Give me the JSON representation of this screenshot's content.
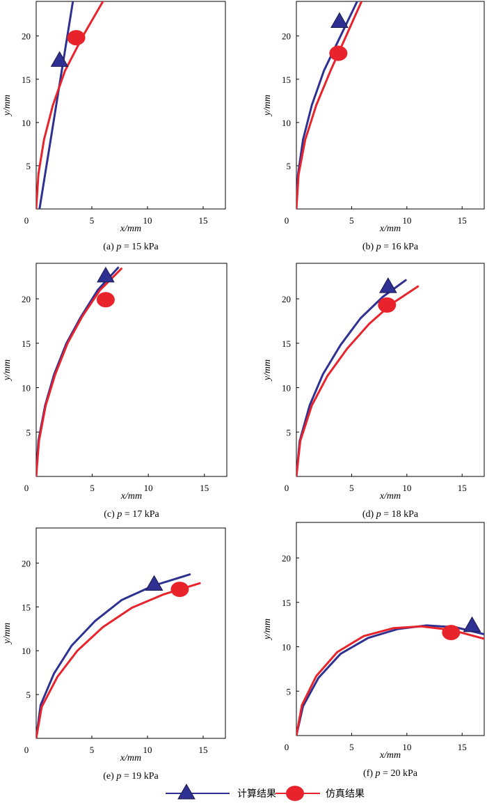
{
  "colors": {
    "calculated": "#2e3192",
    "simulated": "#e8232b"
  },
  "legend": {
    "calculated": "计算结果",
    "simulated": "仿真结果"
  },
  "chart_data": [
    {
      "type": "line",
      "id": "a",
      "caption": "(a) p = 15 kPa",
      "caption_parts": {
        "prefix": "(a) ",
        "var": "p",
        "rest": " = 15 kPa"
      },
      "xlabel": "x/mm",
      "ylabel": "y/mm",
      "xlim": [
        0,
        17
      ],
      "ylim": [
        0,
        24
      ],
      "xticks": [
        0,
        5,
        10,
        15
      ],
      "yticks": [
        5,
        10,
        15,
        20
      ],
      "series": [
        {
          "name": "计算结果",
          "x": [
            0.3,
            0.8,
            1.3,
            1.8,
            2.3,
            2.8,
            3.3
          ],
          "y": [
            0,
            4,
            8,
            12,
            16,
            20,
            24
          ],
          "marker": "triangle",
          "marker_at": [
            2.1,
            17.2
          ]
        },
        {
          "name": "仿真结果",
          "x": [
            0,
            0.2,
            0.7,
            1.5,
            2.6,
            4.2,
            6.0
          ],
          "y": [
            0,
            4,
            8,
            12,
            16,
            20,
            24
          ],
          "marker": "circle",
          "marker_at": [
            3.6,
            19.8
          ]
        }
      ]
    },
    {
      "type": "line",
      "id": "b",
      "caption": "(b) p = 16 kPa",
      "caption_parts": {
        "prefix": "(b) ",
        "var": "p",
        "rest": " = 16 kPa"
      },
      "xlabel": "x/mm",
      "ylabel": "y/mm",
      "xlim": [
        0,
        17
      ],
      "ylim": [
        0,
        24
      ],
      "xticks": [
        0,
        5,
        10,
        15
      ],
      "yticks": [
        5,
        10,
        15,
        20
      ],
      "series": [
        {
          "name": "计算结果",
          "x": [
            0,
            0.15,
            0.6,
            1.4,
            2.5,
            4.0,
            5.5
          ],
          "y": [
            0,
            4,
            8,
            12,
            16,
            20,
            24
          ],
          "marker": "triangle",
          "marker_at": [
            3.9,
            21.7
          ]
        },
        {
          "name": "仿真结果",
          "x": [
            0,
            0.2,
            0.8,
            1.8,
            3.1,
            4.5,
            5.9
          ],
          "y": [
            0,
            4,
            8,
            12,
            16,
            20,
            24
          ],
          "marker": "circle",
          "marker_at": [
            3.8,
            18.0
          ]
        }
      ]
    },
    {
      "type": "line",
      "id": "c",
      "caption": "(c) p = 17 kPa",
      "caption_parts": {
        "prefix": "(c) ",
        "var": "p",
        "rest": " = 17 kPa"
      },
      "xlabel": "x/mm",
      "ylabel": "y/mm",
      "xlim": [
        0,
        17
      ],
      "ylim": [
        0,
        24
      ],
      "xticks": [
        0,
        5,
        10,
        15
      ],
      "yticks": [
        5,
        10,
        15,
        20
      ],
      "series": [
        {
          "name": "计算结果",
          "x": [
            0,
            0.2,
            0.8,
            1.6,
            2.7,
            4.0,
            5.5,
            7.3
          ],
          "y": [
            0,
            4,
            8,
            11.5,
            15,
            18,
            21,
            23.5
          ],
          "marker": "triangle",
          "marker_at": [
            6.2,
            22.6
          ]
        },
        {
          "name": "仿真结果",
          "x": [
            0,
            0.25,
            0.85,
            1.7,
            2.8,
            4.1,
            5.7,
            7.6
          ],
          "y": [
            0,
            4,
            8,
            11.5,
            15,
            18,
            21,
            23.4
          ],
          "marker": "circle",
          "marker_at": [
            6.2,
            19.9
          ]
        }
      ]
    },
    {
      "type": "line",
      "id": "d",
      "caption": "(d) p = 18 kPa",
      "caption_parts": {
        "prefix": "(d) ",
        "var": "p",
        "rest": " = 18 kPa"
      },
      "xlabel": "x/mm",
      "ylabel": "y/mm",
      "xlim": [
        0,
        17
      ],
      "ylim": [
        0,
        24
      ],
      "xticks": [
        0,
        5,
        10,
        15
      ],
      "yticks": [
        5,
        10,
        15,
        20
      ],
      "series": [
        {
          "name": "计算结果",
          "x": [
            0,
            0.3,
            1.2,
            2.4,
            4.0,
            5.8,
            7.8,
            9.9
          ],
          "y": [
            0,
            4,
            8,
            11.5,
            14.8,
            17.8,
            20.2,
            22.1
          ],
          "marker": "triangle",
          "marker_at": [
            8.3,
            21.4
          ]
        },
        {
          "name": "仿真结果",
          "x": [
            0,
            0.35,
            1.4,
            2.8,
            4.6,
            6.6,
            8.7,
            11.0
          ],
          "y": [
            0,
            4,
            8,
            11.3,
            14.4,
            17.2,
            19.5,
            21.4
          ],
          "marker": "circle",
          "marker_at": [
            8.2,
            19.3
          ]
        }
      ]
    },
    {
      "type": "line",
      "id": "e",
      "caption": "(e) p = 19 kPa",
      "caption_parts": {
        "prefix": "(e) ",
        "var": "p",
        "rest": " = 19 kPa"
      },
      "xlabel": "x/mm",
      "ylabel": "y/mm",
      "xlim": [
        0,
        17
      ],
      "ylim": [
        0,
        24
      ],
      "xticks": [
        0,
        5,
        10,
        15
      ],
      "yticks": [
        5,
        10,
        15,
        20
      ],
      "series": [
        {
          "name": "计算结果",
          "x": [
            0,
            0.4,
            1.6,
            3.2,
            5.3,
            7.7,
            10.5,
            13.8
          ],
          "y": [
            0,
            3.8,
            7.4,
            10.6,
            13.4,
            15.8,
            17.4,
            18.7
          ],
          "marker": "triangle",
          "marker_at": [
            10.6,
            17.6
          ]
        },
        {
          "name": "仿真结果",
          "x": [
            0,
            0.5,
            1.9,
            3.7,
            6.0,
            8.6,
            11.4,
            14.7
          ],
          "y": [
            0,
            3.6,
            7.0,
            10.0,
            12.7,
            14.9,
            16.4,
            17.7
          ],
          "marker": "circle",
          "marker_at": [
            12.9,
            17.0
          ]
        }
      ]
    },
    {
      "type": "line",
      "id": "f",
      "caption": "(f) p = 20 kPa",
      "caption_parts": {
        "prefix": "(f) ",
        "var": "p",
        "rest": " = 20 kPa"
      },
      "xlabel": "x/mm",
      "ylabel": "y/mm",
      "xlim": [
        0,
        17
      ],
      "ylim": [
        0,
        24
      ],
      "xticks": [
        0,
        5,
        10,
        15
      ],
      "yticks": [
        5,
        10,
        15,
        20
      ],
      "series": [
        {
          "name": "计算结果",
          "x": [
            0,
            0.6,
            2.0,
            4.0,
            6.5,
            9.2,
            11.8,
            14.4,
            17.0
          ],
          "y": [
            0,
            3.3,
            6.5,
            9.2,
            11.0,
            12.0,
            12.4,
            12.2,
            11.4
          ],
          "marker": "triangle",
          "marker_at": [
            15.9,
            12.4
          ]
        },
        {
          "name": "仿真结果",
          "x": [
            0,
            0.5,
            1.8,
            3.7,
            6.1,
            8.8,
            11.3,
            14.0,
            17.0
          ],
          "y": [
            0,
            3.4,
            6.7,
            9.4,
            11.2,
            12.1,
            12.3,
            11.9,
            10.9
          ],
          "marker": "circle",
          "marker_at": [
            14.0,
            11.6
          ]
        }
      ]
    }
  ]
}
